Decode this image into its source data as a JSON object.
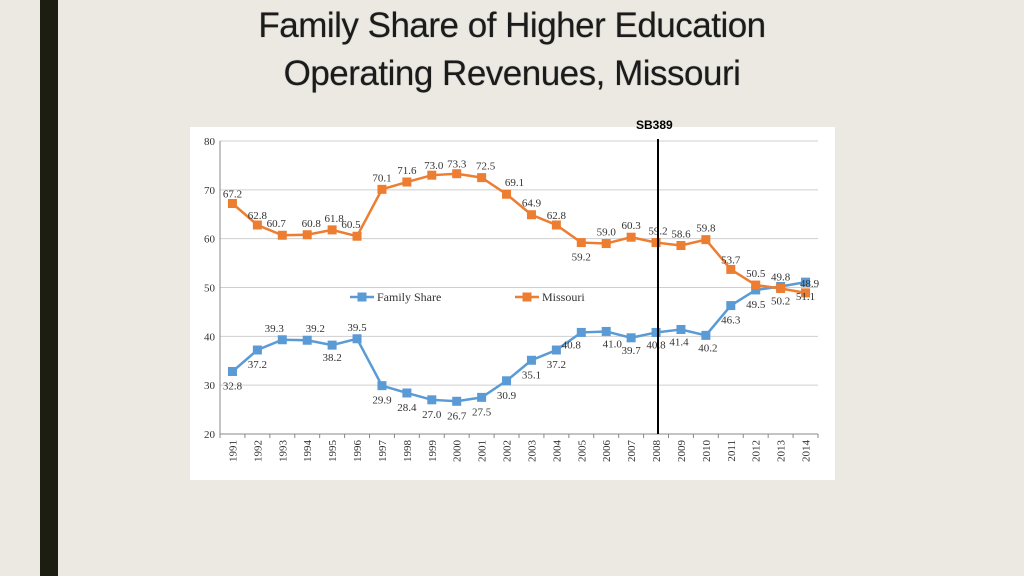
{
  "slide": {
    "title_line1": "Family Share of Higher Education",
    "title_line2": "Operating Revenues, Missouri",
    "accent_bar_color": "#1d1d12",
    "background_color": "#ebe9e1"
  },
  "annotation": {
    "label": "SB389",
    "x_category": "2008"
  },
  "chart_data": {
    "type": "line",
    "categories": [
      "1991",
      "1992",
      "1993",
      "1994",
      "1995",
      "1996",
      "1997",
      "1998",
      "1999",
      "2000",
      "2001",
      "2002",
      "2003",
      "2004",
      "2005",
      "2006",
      "2007",
      "2008",
      "2009",
      "2010",
      "2011",
      "2012",
      "2013",
      "2014"
    ],
    "ylim": [
      20,
      80
    ],
    "yticks": [
      20,
      30,
      40,
      50,
      60,
      70,
      80
    ],
    "grid": true,
    "legend": "center",
    "series": [
      {
        "name": "Family Share",
        "color": "#5b9bd5",
        "values": [
          32.8,
          37.2,
          39.3,
          39.2,
          38.2,
          39.5,
          29.9,
          28.4,
          27.0,
          26.7,
          27.5,
          30.9,
          35.1,
          37.2,
          40.8,
          41.0,
          39.7,
          40.8,
          41.4,
          40.2,
          46.3,
          49.5,
          50.2,
          51.1
        ],
        "labels": [
          "32.8",
          "37.2",
          "39.3",
          "39.2",
          "38.2",
          "39.5",
          "29.9",
          "28.4",
          "27.0",
          "26.7",
          "27.5",
          "30.9",
          "35.1",
          "37.2",
          "40.8",
          "41.0",
          "39.7",
          "40.8",
          "41.4",
          "40.2",
          "46.3",
          "49.5",
          "50.2",
          "51.1"
        ]
      },
      {
        "name": "Missouri",
        "color": "#ed7d31",
        "values": [
          67.2,
          62.8,
          60.7,
          60.8,
          61.8,
          60.5,
          70.1,
          71.6,
          73.0,
          73.3,
          72.5,
          69.1,
          64.9,
          62.8,
          59.2,
          59.0,
          60.3,
          59.2,
          58.6,
          59.8,
          53.7,
          50.5,
          49.8,
          48.9
        ],
        "labels": [
          "67.2",
          "62.8",
          "60.7",
          "60.8",
          "61.8",
          "60.5",
          "70.1",
          "71.6",
          "73.0",
          "73.3",
          "72.5",
          "69.1",
          "64.9",
          "62.8",
          "59.2",
          "59.0",
          "60.3",
          "59.2",
          "58.6",
          "59.8",
          "53.7",
          "50.5",
          "49.8",
          "48.9"
        ]
      }
    ]
  }
}
